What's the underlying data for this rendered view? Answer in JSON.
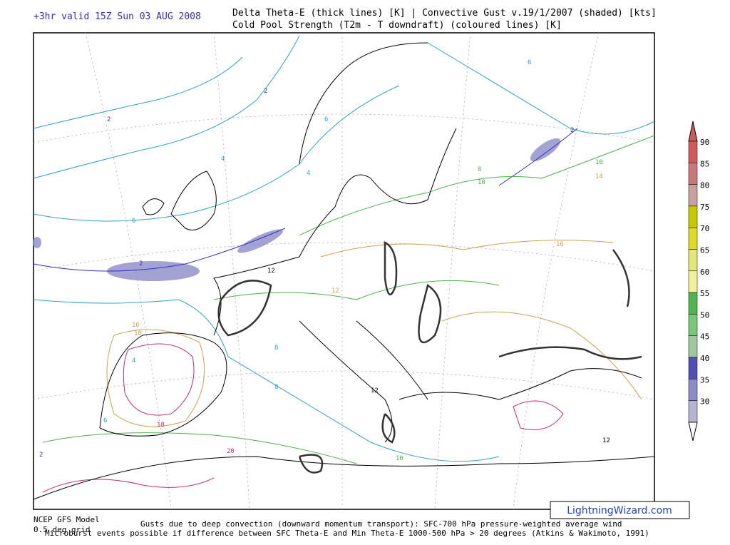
{
  "header": {
    "valid": "+3hr valid 15Z Sun 03 AUG 2008",
    "title_line1": "Delta Theta-E (thick lines) [K]  |  Convective Gust v.19/1/2007 (shaded) [kts]",
    "title_line2": "Cold Pool Strength (T2m - T downdraft) (coloured lines) [K]"
  },
  "map": {
    "contour_labels": [
      "2",
      "2",
      "2",
      "2",
      "4",
      "4",
      "6",
      "6",
      "6",
      "8",
      "8",
      "10",
      "10",
      "12",
      "12",
      "12",
      "14",
      "16",
      "16",
      "18",
      "18",
      "20",
      "12",
      "10",
      "8",
      "6",
      "2",
      "4"
    ]
  },
  "legend": {
    "items": [
      {
        "label": 90,
        "color": "#d05a5a"
      },
      {
        "label": 85,
        "color": "#c87878"
      },
      {
        "label": 80,
        "color": "#c8a0a0"
      },
      {
        "label": 75,
        "color": "#c8c800"
      },
      {
        "label": 70,
        "color": "#dcdc28"
      },
      {
        "label": 65,
        "color": "#e6e678"
      },
      {
        "label": 60,
        "color": "#f0f0a0"
      },
      {
        "label": 55,
        "color": "#50b450"
      },
      {
        "label": 50,
        "color": "#78c878"
      },
      {
        "label": 45,
        "color": "#a0c8a0"
      },
      {
        "label": 40,
        "color": "#5050b4"
      },
      {
        "label": 35,
        "color": "#8c8cc8"
      },
      {
        "label": 30,
        "color": "#b4b4d2"
      }
    ]
  },
  "footer": {
    "model": "NCEP GFS Model",
    "grid": "0.5 deg grid",
    "gusts": "Gusts due to deep convection (downward momentum transport): SFC-700 hPa pressure-weighted average wind",
    "microburst": "Microburst events possible if difference between SFC Theta-E and Min Theta-E 1000-500 hPa > 20 degrees (Atkins & Wakimoto, 1991)",
    "site": "LightningWizard.com"
  }
}
